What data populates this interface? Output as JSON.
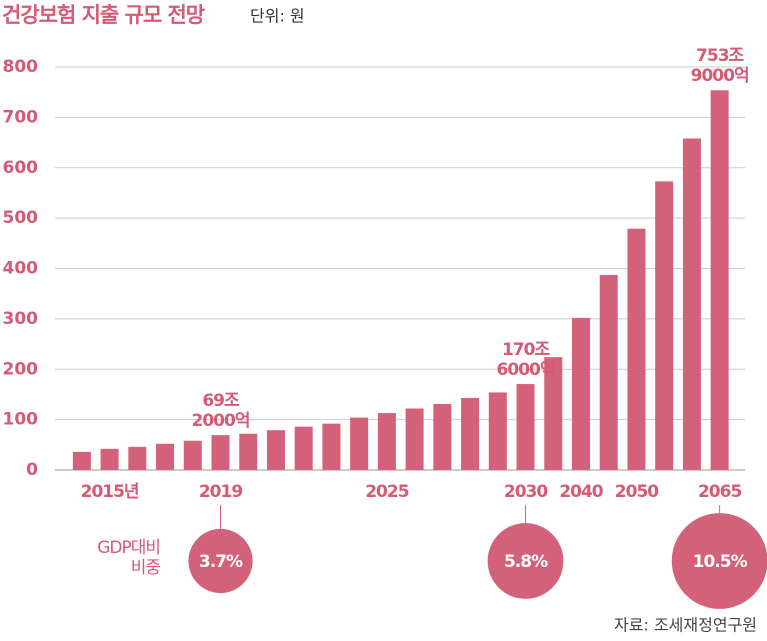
{
  "chart_data": {
    "type": "bar",
    "title": "건강보험 지출 규모 전망",
    "subtitle": "단위: 원",
    "source": "자료: 조세재정연구원",
    "categories": [
      null,
      "2015년",
      null,
      null,
      null,
      "2019",
      null,
      null,
      null,
      null,
      null,
      "2025",
      null,
      null,
      null,
      null,
      "2030",
      null,
      "2040",
      null,
      "2050",
      null,
      null,
      "2065"
    ],
    "values": [
      36,
      42,
      46,
      52,
      58,
      69.2,
      72,
      79,
      86,
      92,
      104,
      113,
      122,
      131,
      143,
      154,
      170.6,
      224,
      302,
      387,
      479,
      573,
      658,
      753.9
    ],
    "value_labels": [
      null,
      null,
      null,
      null,
      null,
      "69조\n2000억",
      null,
      null,
      null,
      null,
      null,
      null,
      null,
      null,
      null,
      null,
      "170조\n6000억",
      null,
      null,
      null,
      null,
      null,
      null,
      "753조\n9000억"
    ],
    "color": "#d4617a",
    "ylim": [
      0,
      800
    ],
    "yticks": [
      0,
      100,
      200,
      300,
      400,
      500,
      600,
      700,
      800
    ],
    "grid": true,
    "gdp_share": {
      "label": "GDP대비\n비중",
      "categories": [
        "2019",
        "2030",
        "2065"
      ],
      "values": [
        3.7,
        5.8,
        10.5
      ],
      "value_labels": [
        "3.7%",
        "5.8%",
        "10.5%"
      ],
      "color": "#d4617a"
    }
  }
}
